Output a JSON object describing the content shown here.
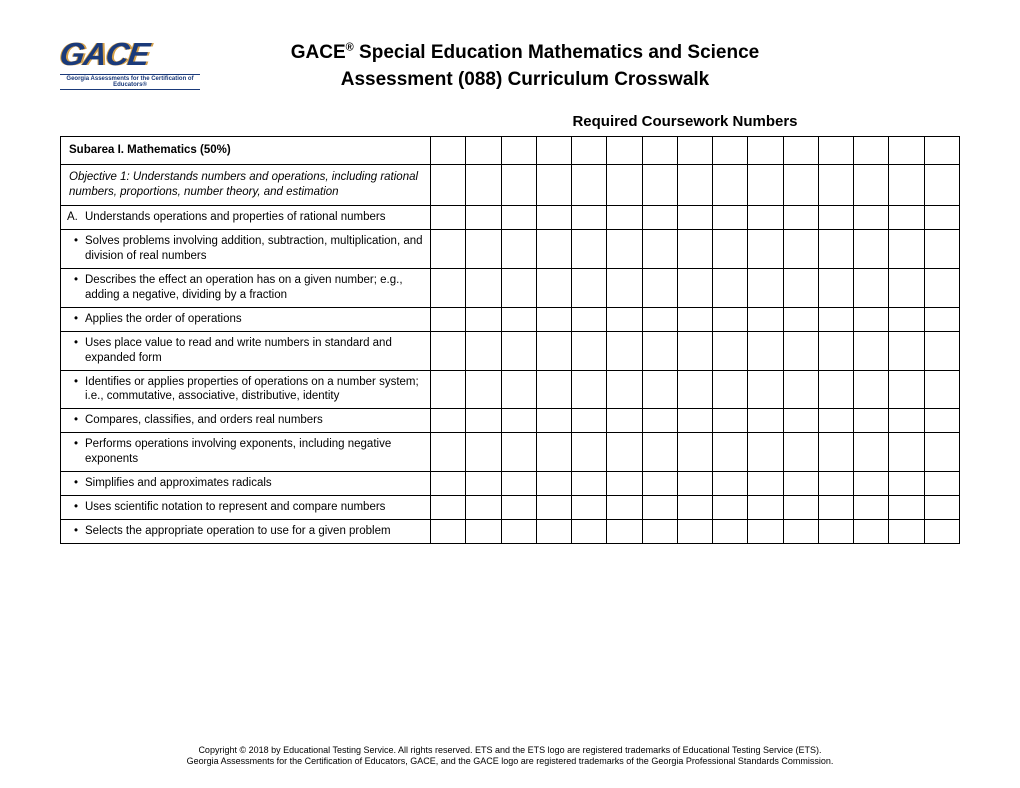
{
  "logo": {
    "text": "GACE",
    "tagline": "Georgia Assessments for the Certification of Educators®"
  },
  "title": {
    "line1_pre": "GACE",
    "sup": "®",
    "line1_post": " Special Education Mathematics and Science",
    "line2": "Assessment (088) Curriculum Crosswalk"
  },
  "section_header": "Required Coursework Numbers",
  "table": {
    "num_blank_cols": 15,
    "subarea": "Subarea I. Mathematics (50%)",
    "objective": "Objective 1: Understands numbers and operations, including rational numbers, proportions, number theory, and estimation",
    "item_letter": "A.",
    "item_text": "Understands operations and properties of rational numbers",
    "bullets": [
      "Solves problems involving addition, subtraction, multiplication, and division of real numbers",
      "Describes the effect an operation has on a given number; e.g., adding a negative, dividing by a fraction",
      "Applies the order of operations",
      "Uses place value to read and write numbers in standard and expanded form",
      "Identifies or applies properties of operations on a number system; i.e., commutative, associative, distributive, identity",
      "Compares, classifies, and orders real numbers",
      "Performs operations involving exponents, including negative exponents",
      "Simplifies and approximates radicals",
      "Uses scientific notation to represent and compare numbers",
      "Selects the appropriate operation to use for a given problem"
    ]
  },
  "footer": {
    "line1": "Copyright © 2018 by Educational Testing Service. All rights reserved. ETS and the ETS logo are registered trademarks of Educational Testing Service (ETS).",
    "line2": "Georgia Assessments for the Certification of Educators, GACE, and the GACE logo are registered trademarks of the Georgia Professional Standards Commission."
  },
  "colors": {
    "border": "#000000",
    "logo_primary": "#1a3a7a",
    "logo_accent": "#d4a04a",
    "bg": "#ffffff"
  }
}
